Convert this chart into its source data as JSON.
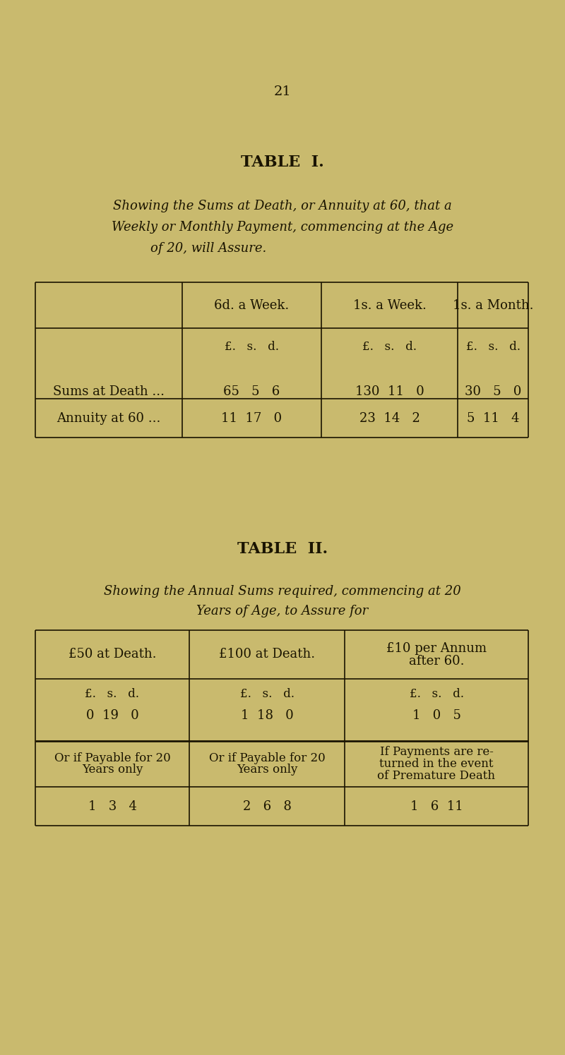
{
  "bg_color": "#c9ba6e",
  "text_color": "#1a1400",
  "page_number": "21",
  "table1": {
    "title": "TABLE  I.",
    "subtitle_line1": "Showing the Sums at Death, or Annuity at 60, that a",
    "subtitle_line2": "Weekly or Monthly Payment, commencing at the Age",
    "subtitle_line3": "of 20, will Assure.",
    "col_headers": [
      "6d. a Week.",
      "1s. a Week.",
      "1s. a Month."
    ],
    "sub_headers": [
      "£.   s.   d.",
      "£.   s.   d.",
      "£.   s.   d."
    ],
    "rows": [
      {
        "label": "Sums at Death ...",
        "values": [
          "65   5   6",
          "130  11   0",
          "30   5   0"
        ]
      },
      {
        "label": "Annuity at 60 ...",
        "values": [
          "11  17   0",
          "23  14   2",
          "5  11   4"
        ]
      }
    ]
  },
  "table2": {
    "title": "TABLE  II.",
    "subtitle_line1": "Showing the Annual Sums required, commencing at 20",
    "subtitle_line2": "Years of Age, to Assure for",
    "col_headers_line1": [
      "£50 at Death.",
      "£100 at Death.",
      "£10 per Annum"
    ],
    "col_headers_line2": [
      "",
      "",
      "after 60."
    ],
    "sub_headers": [
      "£.   s.   d.",
      "£.   s.   d.",
      "£.   s.   d."
    ],
    "row1_values": [
      "0  19   0",
      "1  18   0",
      "1   0   5"
    ],
    "row2_labels_line1": [
      "Or if Payable for 20",
      "Or if Payable for 20",
      "If Payments are re-"
    ],
    "row2_labels_line2": [
      "Years only",
      "Years only",
      "turned in the event"
    ],
    "row2_labels_line3": [
      "",
      "",
      "of Premature Death"
    ],
    "row3_values": [
      "1   3   4",
      "2   6   8",
      "1   6  11"
    ]
  }
}
